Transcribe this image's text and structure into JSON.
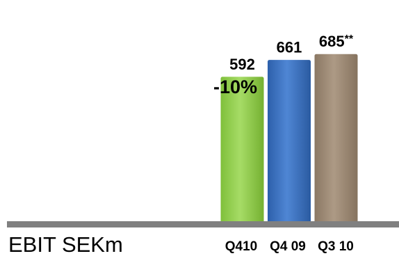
{
  "chart_data": {
    "type": "bar",
    "categories": [
      "Q410",
      "Q4 09",
      "Q3 10"
    ],
    "values": [
      592,
      661,
      685
    ],
    "value_labels": [
      "592",
      "661",
      "685**"
    ],
    "colors": [
      "#92D050",
      "#3E73C4",
      "#9E8B76"
    ],
    "xlabel": "EBIT SEKm",
    "annotation": "-10%",
    "grid": false,
    "legend": "none"
  }
}
